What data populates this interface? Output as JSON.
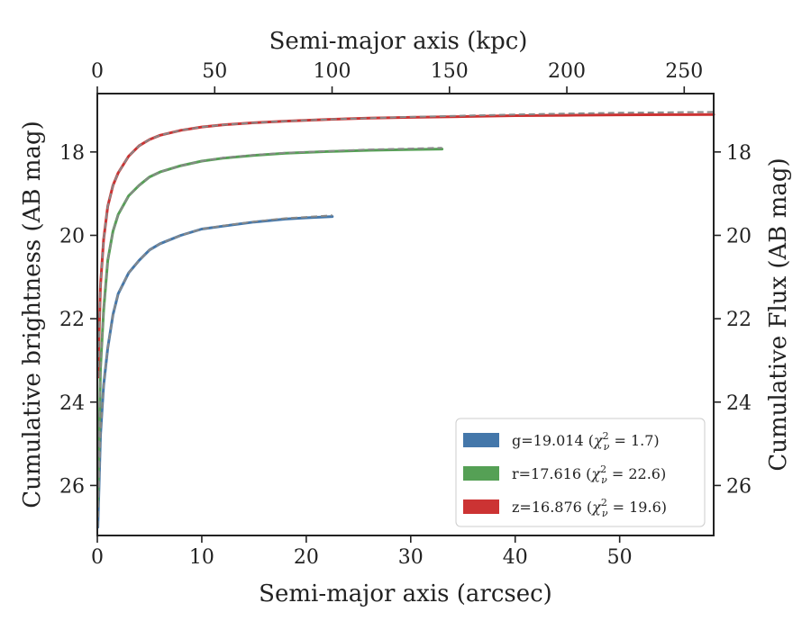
{
  "chart_data": {
    "type": "line",
    "xlabel_bottom": "Semi-major axis (arcsec)",
    "xlabel_top": "Semi-major axis (kpc)",
    "ylabel_left": "Cumulative brightness (AB mag)",
    "ylabel_right": "Cumulative Flux (AB mag)",
    "xlim": [
      0,
      59
    ],
    "ylim": [
      27.2,
      16.6
    ],
    "y_inverted": true,
    "x_ticks": [
      0,
      10,
      20,
      30,
      40,
      50
    ],
    "x_tick_labels": [
      "0",
      "10",
      "20",
      "30",
      "40",
      "50"
    ],
    "top_x_ticks": [
      0,
      50,
      100,
      150,
      200,
      250
    ],
    "top_x_tick_labels": [
      "0",
      "50",
      "100",
      "150",
      "200",
      "250"
    ],
    "kpc_per_arcsec": 4.45,
    "y_ticks": [
      18,
      20,
      22,
      24,
      26
    ],
    "y_tick_labels": [
      "18",
      "20",
      "22",
      "24",
      "26"
    ],
    "legend_position": "lower-right",
    "series": [
      {
        "name": "g",
        "legend_band": "g=19.014",
        "legend_chi_value": "1.7",
        "color": "#4477aa",
        "model_color": "#888888",
        "x": [
          0.05,
          0.3,
          0.6,
          1,
          1.5,
          2,
          3,
          4,
          5,
          6,
          8,
          10,
          12,
          15,
          18,
          20,
          22.5
        ],
        "y": [
          27.0,
          24.8,
          23.6,
          22.7,
          21.9,
          21.4,
          20.9,
          20.6,
          20.35,
          20.2,
          20.0,
          19.85,
          19.78,
          19.68,
          19.61,
          19.58,
          19.55
        ]
      },
      {
        "name": "r",
        "legend_band": "r=17.616",
        "legend_chi_value": "22.6",
        "color": "#55a055",
        "model_color": "#888888",
        "x": [
          0.05,
          0.3,
          0.6,
          1,
          1.5,
          2,
          3,
          4,
          5,
          6,
          8,
          10,
          12,
          15,
          18,
          22,
          26,
          30,
          33
        ],
        "y": [
          26.5,
          23.2,
          21.8,
          20.6,
          19.9,
          19.5,
          19.05,
          18.8,
          18.6,
          18.48,
          18.33,
          18.22,
          18.15,
          18.08,
          18.03,
          17.99,
          17.96,
          17.94,
          17.93
        ]
      },
      {
        "name": "z",
        "legend_band": "z=16.876",
        "legend_chi_value": "19.6",
        "color": "#cc3333",
        "model_color": "#888888",
        "x": [
          0.05,
          0.3,
          0.6,
          1,
          1.5,
          2,
          3,
          4,
          5,
          6,
          8,
          10,
          12,
          15,
          18,
          22,
          26,
          30,
          35,
          40,
          45,
          50,
          55,
          59
        ],
        "y": [
          23.4,
          21.2,
          20.1,
          19.3,
          18.8,
          18.5,
          18.1,
          17.85,
          17.7,
          17.6,
          17.48,
          17.4,
          17.35,
          17.3,
          17.26,
          17.22,
          17.19,
          17.17,
          17.15,
          17.13,
          17.12,
          17.11,
          17.105,
          17.1
        ]
      }
    ],
    "model_curves": [
      {
        "name": "g",
        "x": [
          0.05,
          0.3,
          0.6,
          1,
          1.5,
          2,
          3,
          4,
          5,
          6,
          8,
          10,
          12,
          15,
          18,
          20,
          22.5
        ],
        "y": [
          27.0,
          24.8,
          23.6,
          22.7,
          21.9,
          21.4,
          20.9,
          20.6,
          20.35,
          20.2,
          20.0,
          19.85,
          19.77,
          19.67,
          19.59,
          19.56,
          19.52
        ]
      },
      {
        "name": "r",
        "x": [
          0.05,
          0.3,
          0.6,
          1,
          1.5,
          2,
          3,
          4,
          5,
          6,
          8,
          10,
          12,
          15,
          18,
          22,
          26,
          30,
          33
        ],
        "y": [
          26.5,
          23.2,
          21.8,
          20.6,
          19.9,
          19.5,
          19.05,
          18.8,
          18.6,
          18.48,
          18.33,
          18.22,
          18.14,
          18.07,
          18.02,
          17.98,
          17.94,
          17.92,
          17.9
        ]
      },
      {
        "name": "z",
        "x": [
          0.05,
          0.3,
          0.6,
          1,
          1.5,
          2,
          3,
          4,
          5,
          6,
          8,
          10,
          12,
          15,
          18,
          22,
          26,
          30,
          35,
          40,
          45,
          50,
          55,
          59
        ],
        "y": [
          23.4,
          21.2,
          20.1,
          19.3,
          18.8,
          18.5,
          18.1,
          17.85,
          17.7,
          17.6,
          17.48,
          17.4,
          17.35,
          17.3,
          17.26,
          17.22,
          17.19,
          17.16,
          17.13,
          17.1,
          17.08,
          17.06,
          17.05,
          17.04
        ]
      }
    ]
  }
}
